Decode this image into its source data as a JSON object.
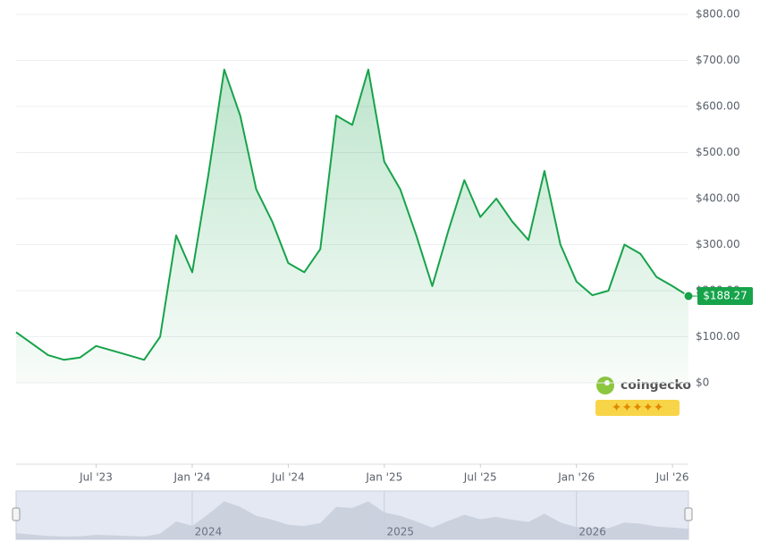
{
  "chart_data": {
    "type": "line",
    "x": [
      "2023-02",
      "2023-03",
      "2023-04",
      "2023-05",
      "2023-06",
      "2023-07",
      "2023-08",
      "2023-09",
      "2023-10",
      "2023-11",
      "2023-12",
      "2024-01",
      "2024-02",
      "2024-03",
      "2024-04",
      "2024-05",
      "2024-06",
      "2024-07",
      "2024-08",
      "2024-09",
      "2024-10",
      "2024-11",
      "2024-12",
      "2025-01",
      "2025-02",
      "2025-03",
      "2025-04",
      "2025-05",
      "2025-06",
      "2025-07",
      "2025-08",
      "2025-09",
      "2025-10",
      "2025-11",
      "2025-12",
      "2026-01",
      "2026-02",
      "2026-03",
      "2026-04",
      "2026-05",
      "2026-06",
      "2026-07",
      "2026-08"
    ],
    "series": [
      {
        "color": "#16a34a",
        "values": [
          110,
          85,
          60,
          50,
          55,
          80,
          70,
          60,
          50,
          100,
          320,
          240,
          450,
          680,
          580,
          420,
          350,
          260,
          240,
          290,
          580,
          560,
          680,
          480,
          420,
          320,
          210,
          330,
          440,
          360,
          400,
          350,
          310,
          460,
          300,
          220,
          190,
          200,
          300,
          280,
          230,
          210,
          188.27
        ]
      }
    ],
    "current_price": {
      "value": 188.27,
      "label": "$188.27"
    },
    "ylim": [
      0,
      800
    ],
    "yticks": [
      {
        "value": 0,
        "label": "$0"
      },
      {
        "value": 100,
        "label": "$100.00"
      },
      {
        "value": 200,
        "label": "$200.00"
      },
      {
        "value": 300,
        "label": "$300.00"
      },
      {
        "value": 400,
        "label": "$400.00"
      },
      {
        "value": 500,
        "label": "$500.00"
      },
      {
        "value": 600,
        "label": "$600.00"
      },
      {
        "value": 700,
        "label": "$700.00"
      },
      {
        "value": 800,
        "label": "$800.00"
      }
    ],
    "xticks": [
      {
        "value": "2023-07",
        "label": "Jul '23"
      },
      {
        "value": "2024-01",
        "label": "Jan '24"
      },
      {
        "value": "2024-07",
        "label": "Jul '24"
      },
      {
        "value": "2025-01",
        "label": "Jan '25"
      },
      {
        "value": "2025-07",
        "label": "Jul '25"
      },
      {
        "value": "2026-01",
        "label": "Jan '26"
      },
      {
        "value": "2026-07",
        "label": "Jul '26"
      }
    ],
    "navigator_ticks": [
      {
        "value": "2024-01",
        "label": "2024"
      },
      {
        "value": "2025-01",
        "label": "2025"
      },
      {
        "value": "2026-01",
        "label": "2026"
      }
    ],
    "watermark": "coingecko",
    "grid": true
  }
}
